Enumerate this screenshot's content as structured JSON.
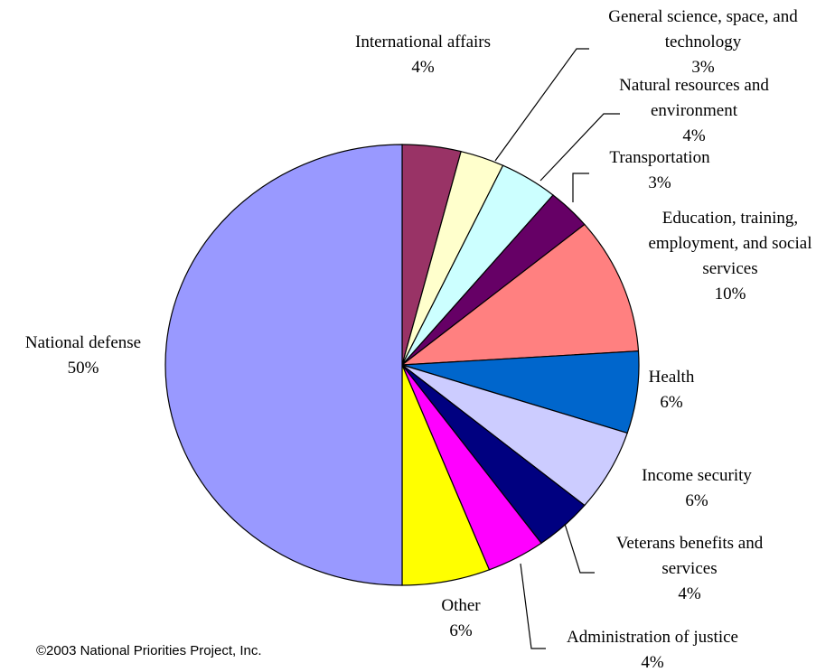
{
  "chart_data": {
    "type": "pie",
    "title": "",
    "slices": [
      {
        "label": [
          "International affairs"
        ],
        "value": 4,
        "value_label": "4%",
        "color": "#993366"
      },
      {
        "label": [
          "General science, space, and",
          "technology"
        ],
        "value": 3,
        "value_label": "3%",
        "color": "#ffffcc"
      },
      {
        "label": [
          "Natural resources and",
          "environment"
        ],
        "value": 4,
        "value_label": "4%",
        "color": "#ccffff"
      },
      {
        "label": [
          "Transportation"
        ],
        "value": 3,
        "value_label": "3%",
        "color": "#660066"
      },
      {
        "label": [
          "Education, training,",
          "employment, and social",
          "services"
        ],
        "value": 10,
        "value_label": "10%",
        "color": "#ff8080"
      },
      {
        "label": [
          "Health"
        ],
        "value": 6,
        "value_label": "6%",
        "color": "#0066cc"
      },
      {
        "label": [
          "Income security"
        ],
        "value": 6,
        "value_label": "6%",
        "color": "#ccccff"
      },
      {
        "label": [
          "Veterans benefits and",
          "services"
        ],
        "value": 4,
        "value_label": "4%",
        "color": "#000080"
      },
      {
        "label": [
          "Administration of justice"
        ],
        "value": 4,
        "value_label": "4%",
        "color": "#ff00ff"
      },
      {
        "label": [
          "Other"
        ],
        "value": 6,
        "value_label": "6%",
        "color": "#ffff00"
      },
      {
        "label": [
          "National defense"
        ],
        "value": 50,
        "value_label": "50%",
        "color": "#9999ff"
      }
    ]
  },
  "footer": {
    "copyright": "©2003 National Priorities Project, Inc."
  }
}
